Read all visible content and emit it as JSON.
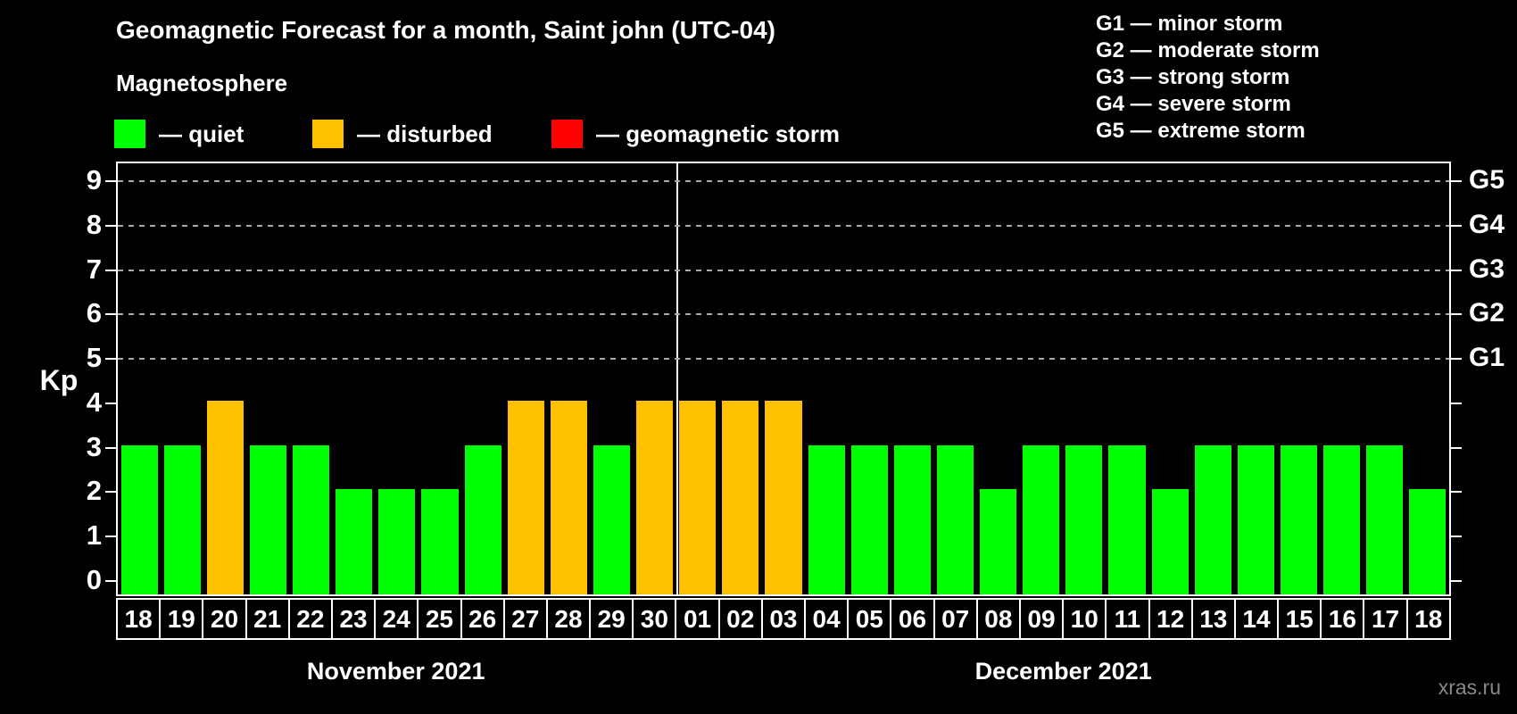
{
  "header": {
    "title": "Geomagnetic Forecast for a month, Saint john (UTC-04)",
    "subtitle": "Magnetosphere"
  },
  "legend": {
    "items": [
      {
        "name": "quiet",
        "label": "— quiet",
        "color": "#00ff00"
      },
      {
        "name": "disturbed",
        "label": "— disturbed",
        "color": "#ffc000"
      },
      {
        "name": "storm",
        "label": "— geomagnetic storm",
        "color": "#ff0000"
      }
    ]
  },
  "g_legend": {
    "items": [
      {
        "label": "G1 — minor storm"
      },
      {
        "label": "G2 — moderate storm"
      },
      {
        "label": "G3 — strong storm"
      },
      {
        "label": "G4 — severe storm"
      },
      {
        "label": "G5 — extreme storm"
      }
    ]
  },
  "colors": {
    "quiet": "#00ff00",
    "disturbed": "#ffc000",
    "storm": "#ff0000",
    "background": "#000000",
    "grid": "#aaaaaa",
    "axis": "#ffffff",
    "watermark": "#888888"
  },
  "watermark": "xras.ru",
  "chart_data": {
    "type": "bar",
    "title": "Geomagnetic Forecast for a month, Saint john (UTC-04)",
    "xlabel": "",
    "ylabel": "Kp",
    "ylim": [
      0,
      9
    ],
    "yticks": [
      0,
      1,
      2,
      3,
      4,
      5,
      6,
      7,
      8,
      9
    ],
    "grid_at_kp": [
      5,
      6,
      7,
      8,
      9
    ],
    "grid": "dashed-horizontal",
    "legend_position": "top",
    "right_axis_labels": [
      {
        "kp": 5,
        "label": "G1"
      },
      {
        "kp": 6,
        "label": "G2"
      },
      {
        "kp": 7,
        "label": "G3"
      },
      {
        "kp": 8,
        "label": "G4"
      },
      {
        "kp": 9,
        "label": "G5"
      }
    ],
    "categories": [
      "18",
      "19",
      "20",
      "21",
      "22",
      "23",
      "24",
      "25",
      "26",
      "27",
      "28",
      "29",
      "30",
      "01",
      "02",
      "03",
      "04",
      "05",
      "06",
      "07",
      "08",
      "09",
      "10",
      "11",
      "12",
      "13",
      "14",
      "15",
      "16",
      "17",
      "18"
    ],
    "values": [
      3,
      3,
      4,
      3,
      3,
      2,
      2,
      2,
      3,
      4,
      4,
      3,
      4,
      4,
      4,
      4,
      3,
      3,
      3,
      3,
      2,
      3,
      3,
      3,
      2,
      3,
      3,
      3,
      3,
      3,
      2
    ],
    "statuses": [
      "quiet",
      "quiet",
      "disturbed",
      "quiet",
      "quiet",
      "quiet",
      "quiet",
      "quiet",
      "quiet",
      "disturbed",
      "disturbed",
      "quiet",
      "disturbed",
      "disturbed",
      "disturbed",
      "disturbed",
      "quiet",
      "quiet",
      "quiet",
      "quiet",
      "quiet",
      "quiet",
      "quiet",
      "quiet",
      "quiet",
      "quiet",
      "quiet",
      "quiet",
      "quiet",
      "quiet",
      "quiet"
    ],
    "groups": [
      {
        "label": "November 2021",
        "days": 13
      },
      {
        "label": "December 2021",
        "days": 18
      }
    ]
  }
}
